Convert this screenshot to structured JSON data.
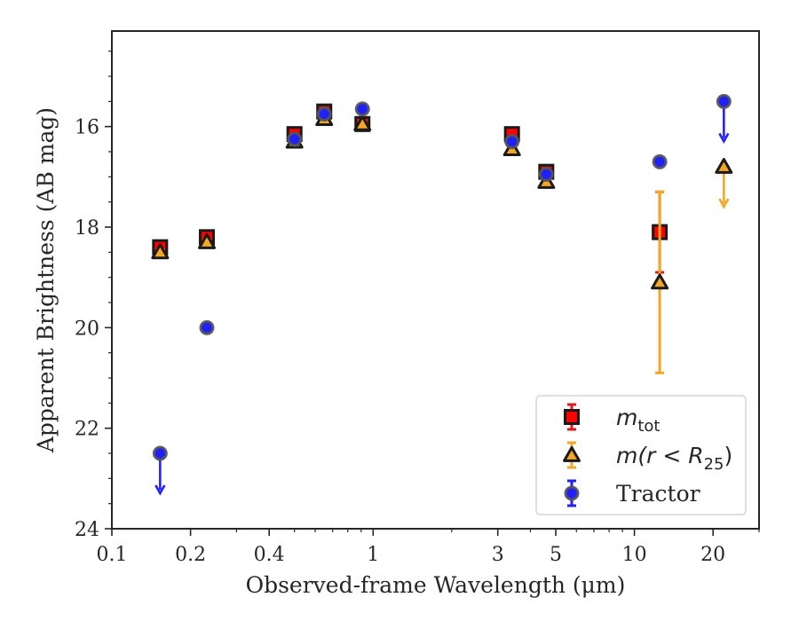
{
  "chart_data": {
    "type": "scatter",
    "xlabel": "Observed-frame Wavelength (μm)",
    "ylabel": "Apparent Brightness (AB mag)",
    "x_scale": "log",
    "xlim": [
      0.1,
      30
    ],
    "ylim": [
      24,
      14.1
    ],
    "y_inverted": true,
    "x_ticks": [
      {
        "value": 0.1,
        "label": "0.1"
      },
      {
        "value": 0.2,
        "label": "0.2"
      },
      {
        "value": 0.4,
        "label": "0.4"
      },
      {
        "value": 1,
        "label": "1"
      },
      {
        "value": 3,
        "label": "3"
      },
      {
        "value": 5,
        "label": "5"
      },
      {
        "value": 10,
        "label": "10"
      },
      {
        "value": 20,
        "label": "20"
      }
    ],
    "y_ticks": [
      16,
      18,
      20,
      22,
      24
    ],
    "legend_position": "lower-right",
    "grid": false,
    "series": [
      {
        "name": "m_tot",
        "legend_label": {
          "main": "m",
          "sub": "tot"
        },
        "marker": "square",
        "color": "#ff0000",
        "errorbar_color": "#e31a1c",
        "points": [
          {
            "x": 0.153,
            "y": 18.4,
            "err": 0.1
          },
          {
            "x": 0.231,
            "y": 18.2,
            "err": 0.1
          },
          {
            "x": 0.5,
            "y": 16.15,
            "err": 0.05
          },
          {
            "x": 0.65,
            "y": 15.7,
            "err": 0.05
          },
          {
            "x": 0.91,
            "y": 15.95,
            "err": 0.05
          },
          {
            "x": 3.4,
            "y": 16.15,
            "err": 0.05
          },
          {
            "x": 4.6,
            "y": 16.9,
            "err": 0.05
          },
          {
            "x": 12.5,
            "y": 18.1,
            "err": 0.8
          }
        ]
      },
      {
        "name": "m(r < R_25)",
        "legend_label": {
          "main": "m(r < R",
          "sub": "25",
          "tail": ")"
        },
        "marker": "triangle",
        "color": "#f5a623",
        "errorbar_color": "#f5a623",
        "points": [
          {
            "x": 0.153,
            "y": 18.5,
            "err": 0.05
          },
          {
            "x": 0.231,
            "y": 18.3,
            "err": 0.05
          },
          {
            "x": 0.5,
            "y": 16.3,
            "err": 0.05
          },
          {
            "x": 0.65,
            "y": 15.85,
            "err": 0.05
          },
          {
            "x": 0.91,
            "y": 15.95,
            "err": 0.05
          },
          {
            "x": 3.4,
            "y": 16.45,
            "err": 0.05
          },
          {
            "x": 4.6,
            "y": 17.1,
            "err": 0.05
          },
          {
            "x": 12.5,
            "y": 19.1,
            "err": 1.8
          },
          {
            "x": 22,
            "y": 16.8,
            "upper_limit": true
          }
        ]
      },
      {
        "name": "Tractor",
        "legend_label": {
          "main": "Tractor"
        },
        "marker": "circle",
        "color": "#2020ff",
        "errorbar_color": "#2020ff",
        "points": [
          {
            "x": 0.153,
            "y": 22.5,
            "upper_limit": true
          },
          {
            "x": 0.231,
            "y": 20.0,
            "err": 0.05
          },
          {
            "x": 0.5,
            "y": 16.25,
            "err": 0.05
          },
          {
            "x": 0.65,
            "y": 15.75,
            "err": 0.05
          },
          {
            "x": 0.91,
            "y": 15.65,
            "err": 0.05
          },
          {
            "x": 3.4,
            "y": 16.3,
            "err": 0.05
          },
          {
            "x": 4.6,
            "y": 16.95,
            "err": 0.05
          },
          {
            "x": 12.5,
            "y": 16.7,
            "err": 0.05
          },
          {
            "x": 22,
            "y": 15.5,
            "upper_limit": true
          }
        ]
      }
    ]
  }
}
